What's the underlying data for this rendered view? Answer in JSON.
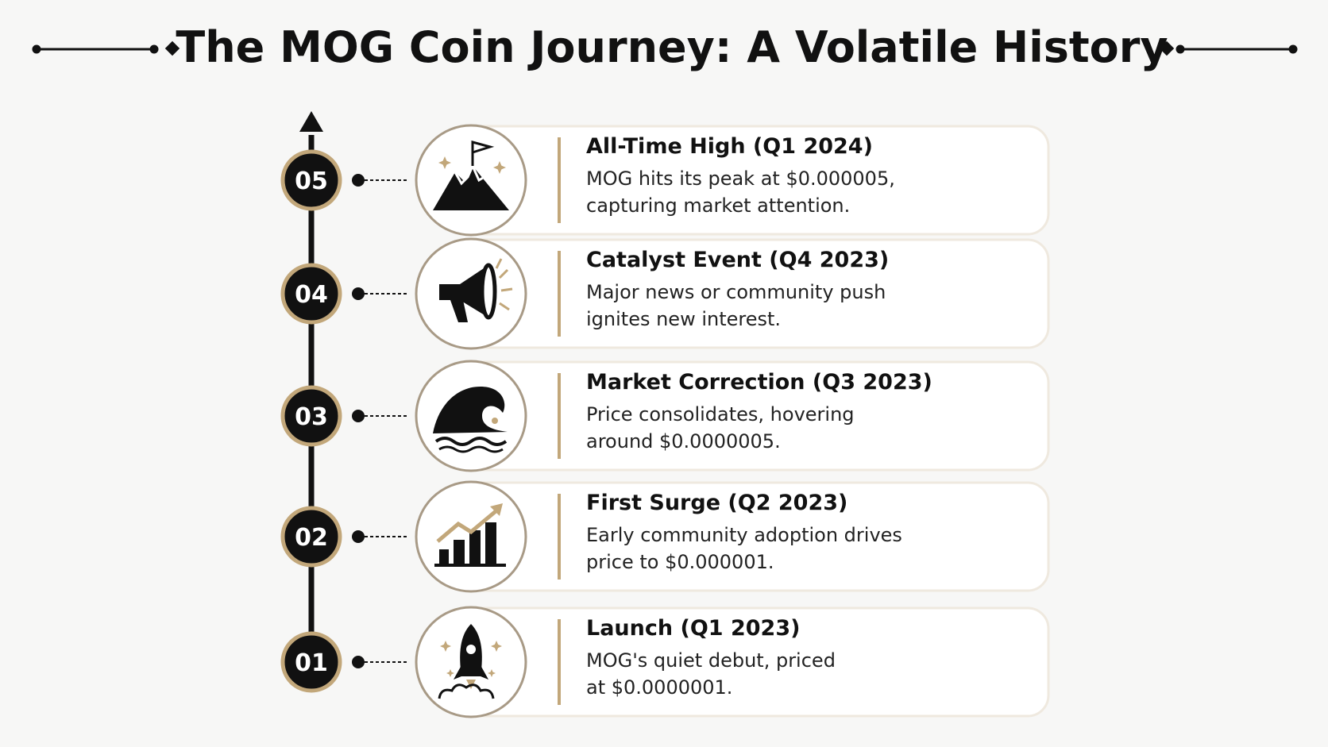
{
  "title": "The MOG Coin Journey: A Volatile History",
  "steps": [
    {
      "number": "05",
      "heading": "All-Time High (Q1 2024)",
      "lines": [
        "MOG hits its peak at $0.000005,",
        "capturing market attention."
      ]
    },
    {
      "number": "04",
      "heading": "Catalyst Event (Q4 2023)",
      "lines": [
        "Major news or community push",
        "ignites new interest."
      ]
    },
    {
      "number": "03",
      "heading": "Market Correction (Q3 2023)",
      "lines": [
        "Price consolidates, hovering",
        "around $0.0000005."
      ]
    },
    {
      "number": "02",
      "heading": "First Surge (Q2 2023)",
      "lines": [
        "Early community adoption drives",
        "price to $0.000001."
      ]
    },
    {
      "number": "01",
      "heading": "Launch (Q1 2023)",
      "lines": [
        "MOG's quiet debut, priced",
        "at $0.0000001."
      ]
    }
  ]
}
